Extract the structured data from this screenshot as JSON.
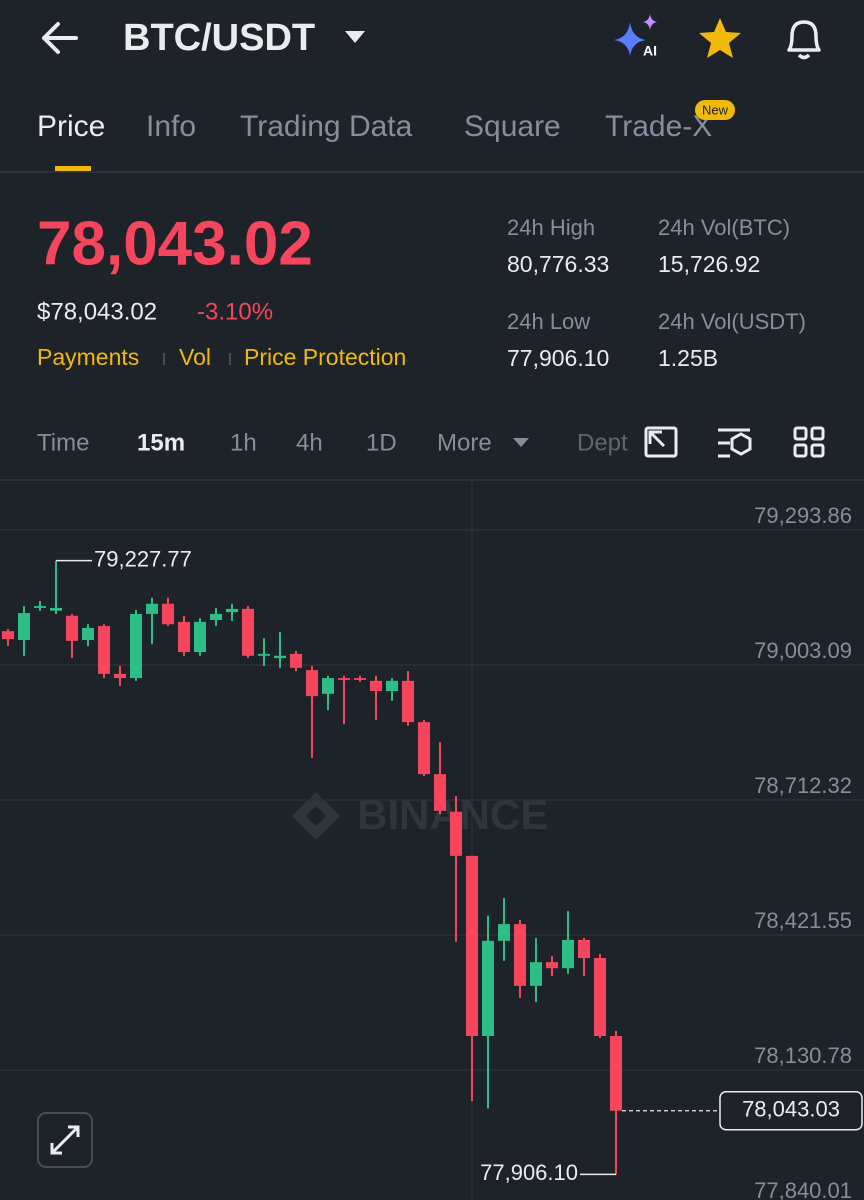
{
  "header": {
    "title": "BTC/USDT"
  },
  "tabs": [
    "Price",
    "Info",
    "Trading Data",
    "Square",
    "Trade-X"
  ],
  "new_badge": "New",
  "price": {
    "last": "78,043.02",
    "usd": "$78,043.02",
    "change": "-3.10%",
    "tags": [
      "Payments",
      "Vol",
      "Price Protection"
    ]
  },
  "stats": [
    {
      "label": "24h High",
      "value": "80,776.33"
    },
    {
      "label": "24h Vol(BTC)",
      "value": "15,726.92"
    },
    {
      "label": "24h Low",
      "value": "77,906.10"
    },
    {
      "label": "24h Vol(USDT)",
      "value": "1.25B"
    }
  ],
  "intervals": [
    "Time",
    "15m",
    "1h",
    "4h",
    "1D",
    "More",
    "Dept"
  ],
  "watermark": "BINANCE",
  "chart_data": {
    "type": "candlestick",
    "up_color": "#2ebd85",
    "down_color": "#f6465d",
    "ylim": [
      77850.8,
      79401.55
    ],
    "yticks": [
      {
        "value": 79293.86,
        "label": "79,293.86"
      },
      {
        "value": 79003.09,
        "label": "79,003.09"
      },
      {
        "value": 78712.32,
        "label": "78,712.32"
      },
      {
        "value": 78421.55,
        "label": "78,421.55"
      },
      {
        "value": 78130.78,
        "label": "78,130.78"
      },
      {
        "value": 77840.01,
        "label": "77,840.01"
      }
    ],
    "grid": true,
    "open": [
      79076,
      79057,
      79126,
      79120,
      79109,
      79057,
      79087,
      78984,
      78975,
      79113,
      79135,
      79096,
      79031,
      79100,
      79117,
      79124,
      79023,
      79018,
      79027,
      78992,
      78941,
      78975,
      78975,
      78969,
      78947,
      78969,
      78880,
      78768,
      78687,
      78592,
      78204,
      78409,
      78445,
      78312,
      78363,
      78350,
      78411,
      78372,
      78204
    ],
    "high": [
      79081,
      79130,
      79141,
      79227.77,
      79113,
      79091,
      79091,
      79001,
      79122,
      79148,
      79148,
      79109,
      79104,
      79126,
      79135,
      79130,
      79061,
      79074,
      79033,
      79001,
      78980,
      78980,
      78980,
      78980,
      78975,
      78990,
      78885,
      78837,
      78721,
      78592,
      78463,
      78501,
      78454,
      78415,
      78376,
      78473,
      78415,
      78381,
      78215
    ],
    "low": [
      79044,
      79023,
      79120,
      79113,
      79018,
      79044,
      78975,
      78958,
      78969,
      79048,
      79087,
      79023,
      79023,
      79087,
      79098,
      79018,
      79001,
      78997,
      78990,
      78803,
      78906,
      78876,
      78967,
      78885,
      78926,
      78872,
      78764,
      78682,
      78407,
      78064,
      78048,
      78366,
      78286,
      78277,
      78333,
      78338,
      78333,
      78200,
      77906.1
    ],
    "close": [
      79059,
      79115,
      79130,
      79126,
      79055,
      79083,
      78984,
      78975,
      79113,
      79135,
      79091,
      79031,
      79096,
      79113,
      79124,
      79023,
      79027,
      79023,
      78997,
      78936,
      78975,
      78971,
      78971,
      78947,
      78969,
      78880,
      78768,
      78689,
      78592,
      78204,
      78409,
      78445,
      78312,
      78363,
      78350,
      78411,
      78372,
      78204,
      78043.03
    ],
    "max_label": "79,227.77",
    "min_label": "77,906.10",
    "last_label": "78,043.03"
  }
}
